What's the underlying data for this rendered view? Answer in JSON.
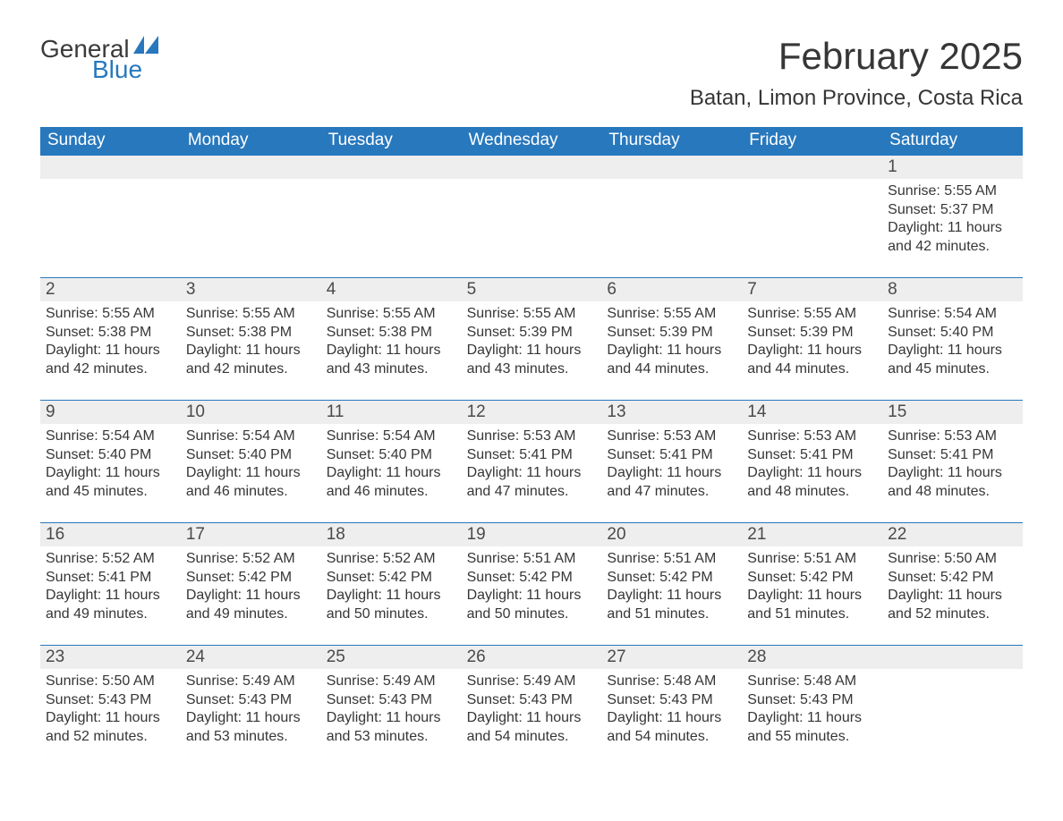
{
  "logo": {
    "general": "General",
    "blue": "Blue",
    "mark_color": "#2878bd"
  },
  "title": "February 2025",
  "location": "Batan, Limon Province, Costa Rica",
  "colors": {
    "header_bg": "#2878bd",
    "header_text": "#ffffff",
    "daynum_bg": "#eeeeee",
    "week_border": "#2878bd",
    "body_text": "#363636"
  },
  "weekdays": [
    "Sunday",
    "Monday",
    "Tuesday",
    "Wednesday",
    "Thursday",
    "Friday",
    "Saturday"
  ],
  "weeks": [
    [
      null,
      null,
      null,
      null,
      null,
      null,
      {
        "n": "1",
        "sunrise": "5:55 AM",
        "sunset": "5:37 PM",
        "daylight": "11 hours and 42 minutes."
      }
    ],
    [
      {
        "n": "2",
        "sunrise": "5:55 AM",
        "sunset": "5:38 PM",
        "daylight": "11 hours and 42 minutes."
      },
      {
        "n": "3",
        "sunrise": "5:55 AM",
        "sunset": "5:38 PM",
        "daylight": "11 hours and 42 minutes."
      },
      {
        "n": "4",
        "sunrise": "5:55 AM",
        "sunset": "5:38 PM",
        "daylight": "11 hours and 43 minutes."
      },
      {
        "n": "5",
        "sunrise": "5:55 AM",
        "sunset": "5:39 PM",
        "daylight": "11 hours and 43 minutes."
      },
      {
        "n": "6",
        "sunrise": "5:55 AM",
        "sunset": "5:39 PM",
        "daylight": "11 hours and 44 minutes."
      },
      {
        "n": "7",
        "sunrise": "5:55 AM",
        "sunset": "5:39 PM",
        "daylight": "11 hours and 44 minutes."
      },
      {
        "n": "8",
        "sunrise": "5:54 AM",
        "sunset": "5:40 PM",
        "daylight": "11 hours and 45 minutes."
      }
    ],
    [
      {
        "n": "9",
        "sunrise": "5:54 AM",
        "sunset": "5:40 PM",
        "daylight": "11 hours and 45 minutes."
      },
      {
        "n": "10",
        "sunrise": "5:54 AM",
        "sunset": "5:40 PM",
        "daylight": "11 hours and 46 minutes."
      },
      {
        "n": "11",
        "sunrise": "5:54 AM",
        "sunset": "5:40 PM",
        "daylight": "11 hours and 46 minutes."
      },
      {
        "n": "12",
        "sunrise": "5:53 AM",
        "sunset": "5:41 PM",
        "daylight": "11 hours and 47 minutes."
      },
      {
        "n": "13",
        "sunrise": "5:53 AM",
        "sunset": "5:41 PM",
        "daylight": "11 hours and 47 minutes."
      },
      {
        "n": "14",
        "sunrise": "5:53 AM",
        "sunset": "5:41 PM",
        "daylight": "11 hours and 48 minutes."
      },
      {
        "n": "15",
        "sunrise": "5:53 AM",
        "sunset": "5:41 PM",
        "daylight": "11 hours and 48 minutes."
      }
    ],
    [
      {
        "n": "16",
        "sunrise": "5:52 AM",
        "sunset": "5:41 PM",
        "daylight": "11 hours and 49 minutes."
      },
      {
        "n": "17",
        "sunrise": "5:52 AM",
        "sunset": "5:42 PM",
        "daylight": "11 hours and 49 minutes."
      },
      {
        "n": "18",
        "sunrise": "5:52 AM",
        "sunset": "5:42 PM",
        "daylight": "11 hours and 50 minutes."
      },
      {
        "n": "19",
        "sunrise": "5:51 AM",
        "sunset": "5:42 PM",
        "daylight": "11 hours and 50 minutes."
      },
      {
        "n": "20",
        "sunrise": "5:51 AM",
        "sunset": "5:42 PM",
        "daylight": "11 hours and 51 minutes."
      },
      {
        "n": "21",
        "sunrise": "5:51 AM",
        "sunset": "5:42 PM",
        "daylight": "11 hours and 51 minutes."
      },
      {
        "n": "22",
        "sunrise": "5:50 AM",
        "sunset": "5:42 PM",
        "daylight": "11 hours and 52 minutes."
      }
    ],
    [
      {
        "n": "23",
        "sunrise": "5:50 AM",
        "sunset": "5:43 PM",
        "daylight": "11 hours and 52 minutes."
      },
      {
        "n": "24",
        "sunrise": "5:49 AM",
        "sunset": "5:43 PM",
        "daylight": "11 hours and 53 minutes."
      },
      {
        "n": "25",
        "sunrise": "5:49 AM",
        "sunset": "5:43 PM",
        "daylight": "11 hours and 53 minutes."
      },
      {
        "n": "26",
        "sunrise": "5:49 AM",
        "sunset": "5:43 PM",
        "daylight": "11 hours and 54 minutes."
      },
      {
        "n": "27",
        "sunrise": "5:48 AM",
        "sunset": "5:43 PM",
        "daylight": "11 hours and 54 minutes."
      },
      {
        "n": "28",
        "sunrise": "5:48 AM",
        "sunset": "5:43 PM",
        "daylight": "11 hours and 55 minutes."
      },
      null
    ]
  ],
  "labels": {
    "sunrise": "Sunrise: ",
    "sunset": "Sunset: ",
    "daylight": "Daylight: "
  }
}
